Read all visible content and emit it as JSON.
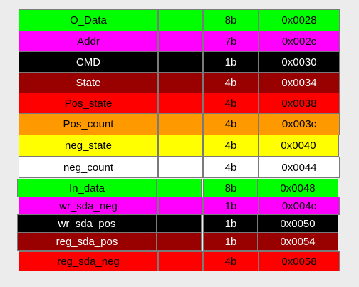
{
  "registers": [
    {
      "name": "O_Data",
      "size": "8b",
      "addr": "0x0028",
      "bg": "#00ff00",
      "fg": "#000000"
    },
    {
      "name": "Addr",
      "size": "7b",
      "addr": "0x002c",
      "bg": "#ff00ff",
      "fg": "#000000"
    },
    {
      "name": "CMD",
      "size": "1b",
      "addr": "0x0030",
      "bg": "#000000",
      "fg": "#ffffff"
    },
    {
      "name": "State",
      "size": "4b",
      "addr": "0x0034",
      "bg": "#990000",
      "fg": "#ffffff"
    },
    {
      "name": "Pos_state",
      "size": "4b",
      "addr": "0x0038",
      "bg": "#ff0000",
      "fg": "#000000"
    },
    {
      "name": "Pos_count",
      "size": "4b",
      "addr": "0x003c",
      "bg": "#ff9900",
      "fg": "#000000"
    },
    {
      "name": "neg_state",
      "size": "4b",
      "addr": "0x0040",
      "bg": "#ffff00",
      "fg": "#000000"
    },
    {
      "name": "neg_count",
      "size": "4b",
      "addr": "0x0044",
      "bg": "#ffffff",
      "fg": "#000000"
    },
    {
      "name": "In_data",
      "size": "8b",
      "addr": "0x0048",
      "bg": "#00ff00",
      "fg": "#000000"
    },
    {
      "name": "wr_sda_neg",
      "size": "1b",
      "addr": "0x004c",
      "bg": "#ff00ff",
      "fg": "#000000"
    },
    {
      "name": "wr_sda_pos",
      "size": "1b",
      "addr": "0x0050",
      "bg": "#000000",
      "fg": "#ffffff"
    },
    {
      "name": "reg_sda_pos",
      "size": "1b",
      "addr": "0x0054",
      "bg": "#990000",
      "fg": "#ffffff"
    },
    {
      "name": "reg_sda_neg",
      "size": "4b",
      "addr": "0x0058",
      "bg": "#ff0000",
      "fg": "#000000"
    }
  ]
}
